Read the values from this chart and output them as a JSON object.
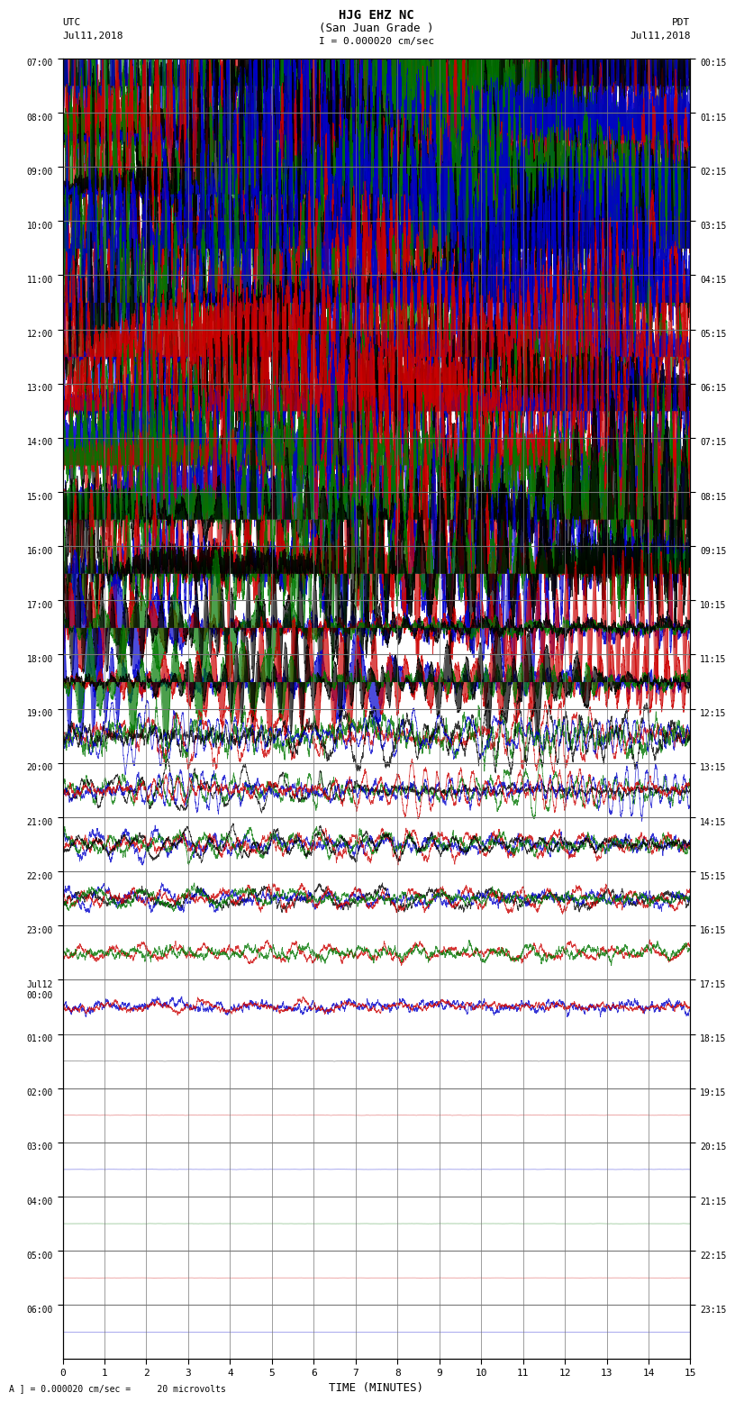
{
  "title_line1": "HJG EHZ NC",
  "title_line2": "(San Juan Grade )",
  "title_scale": "I = 0.000020 cm/sec",
  "left_label_line1": "UTC",
  "left_label_line2": "Jul11,2018",
  "right_label_line1": "PDT",
  "right_label_line2": "Jul11,2018",
  "xlabel": "TIME (MINUTES)",
  "footer": "A ] = 0.000020 cm/sec =     20 microvolts",
  "fig_width": 8.5,
  "fig_height": 16.13,
  "bg_color": "#ffffff",
  "grid_color": "#777777",
  "utc_times": [
    "07:00",
    "08:00",
    "09:00",
    "10:00",
    "11:00",
    "12:00",
    "13:00",
    "14:00",
    "15:00",
    "16:00",
    "17:00",
    "18:00",
    "19:00",
    "20:00",
    "21:00",
    "22:00",
    "23:00",
    "Jul12\n00:00",
    "01:00",
    "02:00",
    "03:00",
    "04:00",
    "05:00",
    "06:00"
  ],
  "pdt_times": [
    "00:15",
    "01:15",
    "02:15",
    "03:15",
    "04:15",
    "05:15",
    "06:15",
    "07:15",
    "08:15",
    "09:15",
    "10:15",
    "11:15",
    "12:15",
    "13:15",
    "14:15",
    "15:15",
    "16:15",
    "17:15",
    "18:15",
    "19:15",
    "20:15",
    "21:15",
    "22:15",
    "23:15"
  ],
  "n_rows": 24,
  "n_cols_minutes": 15,
  "colors": {
    "red": "#cc0000",
    "green": "#007700",
    "blue": "#0000cc",
    "black": "#000000",
    "dark_red": "#aa0000",
    "dark_green": "#005500"
  },
  "channel_colors": [
    "#cc0000",
    "#007700",
    "#000000",
    "#0000cc"
  ],
  "row_amplitudes": [
    8.0,
    8.0,
    7.5,
    7.0,
    6.5,
    6.0,
    5.5,
    5.0,
    5.5,
    5.0,
    3.0,
    2.5,
    1.5,
    1.2,
    0.8,
    0.6,
    0.5,
    0.4,
    0.15,
    0.12,
    0.08,
    0.06,
    0.05,
    0.04
  ],
  "row_dominant_color_idx": [
    0,
    0,
    0,
    0,
    0,
    1,
    1,
    2,
    3,
    3,
    3,
    3,
    0,
    1,
    3,
    2,
    0,
    3,
    2,
    0,
    3,
    1,
    0,
    3
  ]
}
